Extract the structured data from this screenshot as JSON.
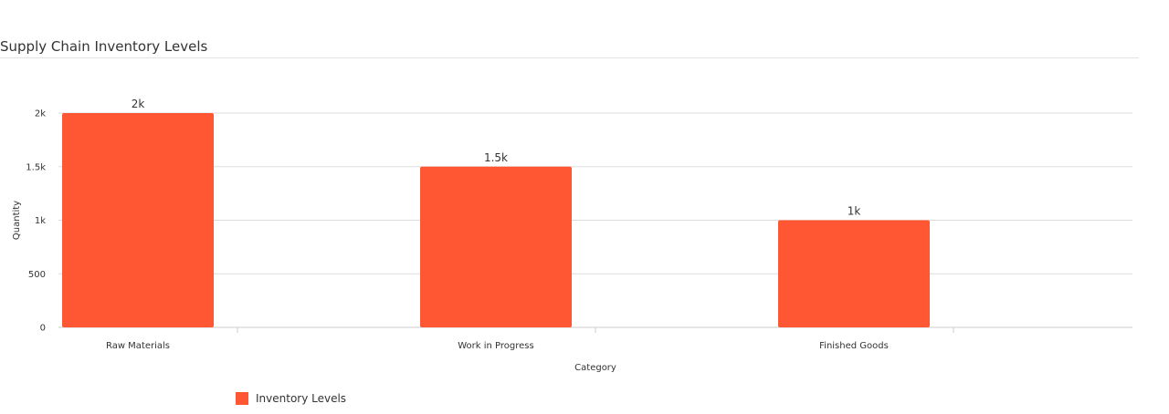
{
  "header": {
    "title": "Supply Chain Inventory Levels"
  },
  "chart_data": {
    "type": "bar",
    "categories": [
      "Raw Materials",
      "Work in Progress",
      "Finished Goods"
    ],
    "series": [
      {
        "name": "Inventory Levels",
        "values": [
          2000,
          1500,
          1000
        ],
        "color": "#ff5733"
      }
    ],
    "data_labels": [
      "2k",
      "1.5k",
      "1k"
    ],
    "title": "Supply Chain Inventory Levels",
    "xlabel": "Category",
    "ylabel": "Quantity",
    "ylim": [
      0,
      2000
    ],
    "yticks": [
      0,
      500,
      1000,
      1500,
      2000
    ],
    "ytick_labels": [
      "0",
      "500",
      "1k",
      "1.5k",
      "2k"
    ],
    "grid": true,
    "legend_position": "bottom-left"
  }
}
